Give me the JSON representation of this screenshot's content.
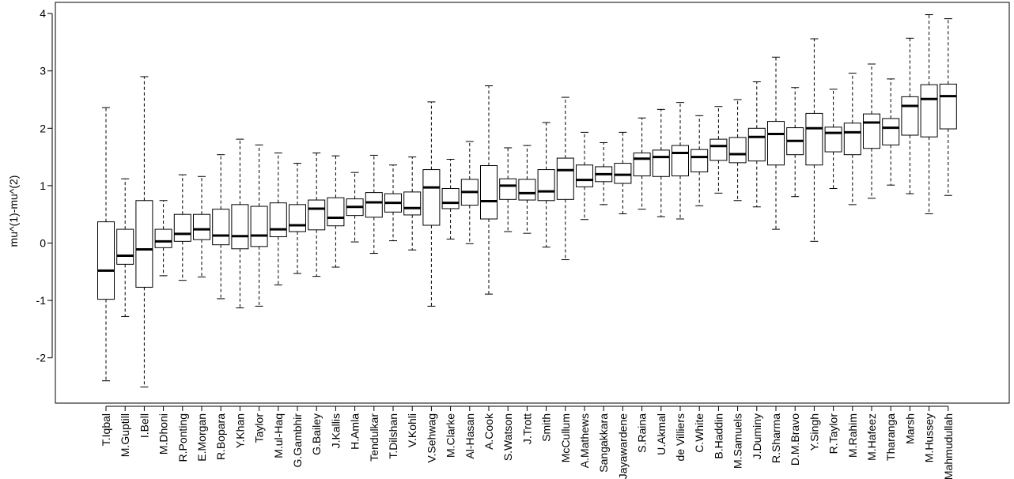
{
  "chart_data": {
    "type": "boxplot",
    "title": "",
    "xlabel": "",
    "ylabel": "mu^(1)-mu^(2)",
    "ylim": [
      -2.8,
      4.2
    ],
    "y_ticks": [
      -2,
      -1,
      0,
      1,
      2,
      3,
      4
    ],
    "grid": false,
    "legend": "none",
    "colors": {
      "box_fill": "#ffffff",
      "stroke": "#000000",
      "whisker": "#000000"
    },
    "series": [
      {
        "name": "T.Iqbal",
        "min": -2.4,
        "q1": -0.98,
        "median": -0.48,
        "q3": 0.37,
        "max": 2.36
      },
      {
        "name": "M.Guptill",
        "min": -1.28,
        "q1": -0.37,
        "median": -0.22,
        "q3": 0.24,
        "max": 1.12
      },
      {
        "name": "I.Bell",
        "min": -2.51,
        "q1": -0.77,
        "median": -0.11,
        "q3": 0.74,
        "max": 2.9
      },
      {
        "name": "M.Dhoni",
        "min": -0.57,
        "q1": -0.08,
        "median": 0.03,
        "q3": 0.24,
        "max": 0.74
      },
      {
        "name": "R.Ponting",
        "min": -0.65,
        "q1": 0.03,
        "median": 0.16,
        "q3": 0.5,
        "max": 1.19
      },
      {
        "name": "E.Morgan",
        "min": -0.59,
        "q1": 0.06,
        "median": 0.24,
        "q3": 0.5,
        "max": 1.16
      },
      {
        "name": "R.Bopara",
        "min": -0.97,
        "q1": -0.03,
        "median": 0.13,
        "q3": 0.59,
        "max": 1.54
      },
      {
        "name": "Y.Khan",
        "min": -1.13,
        "q1": -0.1,
        "median": 0.12,
        "q3": 0.67,
        "max": 1.81
      },
      {
        "name": "Taylor",
        "min": -1.1,
        "q1": -0.06,
        "median": 0.13,
        "q3": 0.64,
        "max": 1.71
      },
      {
        "name": "M.ul-Haq",
        "min": -0.73,
        "q1": 0.11,
        "median": 0.24,
        "q3": 0.7,
        "max": 1.57
      },
      {
        "name": "G.Gambhir",
        "min": -0.53,
        "q1": 0.2,
        "median": 0.31,
        "q3": 0.67,
        "max": 1.39
      },
      {
        "name": "G.Bailey",
        "min": -0.58,
        "q1": 0.23,
        "median": 0.6,
        "q3": 0.75,
        "max": 1.57
      },
      {
        "name": "J.Kallis",
        "min": -0.42,
        "q1": 0.3,
        "median": 0.44,
        "q3": 0.79,
        "max": 1.52
      },
      {
        "name": "H.Amla",
        "min": 0.02,
        "q1": 0.48,
        "median": 0.63,
        "q3": 0.77,
        "max": 1.23
      },
      {
        "name": "Tendulkar",
        "min": -0.18,
        "q1": 0.45,
        "median": 0.71,
        "q3": 0.88,
        "max": 1.53
      },
      {
        "name": "T.Dilshan",
        "min": 0.04,
        "q1": 0.54,
        "median": 0.7,
        "q3": 0.86,
        "max": 1.36
      },
      {
        "name": "V.Kohli",
        "min": -0.12,
        "q1": 0.49,
        "median": 0.61,
        "q3": 0.89,
        "max": 1.5
      },
      {
        "name": "V.Sehwag",
        "min": -1.1,
        "q1": 0.31,
        "median": 0.97,
        "q3": 1.28,
        "max": 2.46
      },
      {
        "name": "M.Clarke",
        "min": 0.07,
        "q1": 0.6,
        "median": 0.7,
        "q3": 0.95,
        "max": 1.46
      },
      {
        "name": "Al-Hasan",
        "min": -0.01,
        "q1": 0.66,
        "median": 0.89,
        "q3": 1.11,
        "max": 1.77
      },
      {
        "name": "A.Cook",
        "min": -0.89,
        "q1": 0.42,
        "median": 0.73,
        "q3": 1.35,
        "max": 2.74
      },
      {
        "name": "S.Watson",
        "min": 0.2,
        "q1": 0.76,
        "median": 1.0,
        "q3": 1.12,
        "max": 1.66
      },
      {
        "name": "J.Trott",
        "min": 0.17,
        "q1": 0.75,
        "median": 0.87,
        "q3": 1.11,
        "max": 1.7
      },
      {
        "name": "Smith",
        "min": -0.07,
        "q1": 0.74,
        "median": 0.9,
        "q3": 1.28,
        "max": 2.1
      },
      {
        "name": "McCullum",
        "min": -0.29,
        "q1": 0.76,
        "median": 1.27,
        "q3": 1.48,
        "max": 2.54
      },
      {
        "name": "A.Mathews",
        "min": 0.41,
        "q1": 0.98,
        "median": 1.1,
        "q3": 1.36,
        "max": 1.93
      },
      {
        "name": "Sangakkara",
        "min": 0.67,
        "q1": 1.07,
        "median": 1.2,
        "q3": 1.33,
        "max": 1.75
      },
      {
        "name": "Jayawardene",
        "min": 0.51,
        "q1": 1.04,
        "median": 1.19,
        "q3": 1.39,
        "max": 1.93
      },
      {
        "name": "S.Raina",
        "min": 0.59,
        "q1": 1.17,
        "median": 1.47,
        "q3": 1.57,
        "max": 2.18
      },
      {
        "name": "U.Akmal",
        "min": 0.46,
        "q1": 1.16,
        "median": 1.5,
        "q3": 1.62,
        "max": 2.33
      },
      {
        "name": "de Villiers",
        "min": 0.42,
        "q1": 1.17,
        "median": 1.57,
        "q3": 1.7,
        "max": 2.45
      },
      {
        "name": "C.White",
        "min": 0.65,
        "q1": 1.24,
        "median": 1.5,
        "q3": 1.63,
        "max": 2.22
      },
      {
        "name": "B.Haddin",
        "min": 0.87,
        "q1": 1.44,
        "median": 1.69,
        "q3": 1.81,
        "max": 2.38
      },
      {
        "name": "M.Samuels",
        "min": 0.74,
        "q1": 1.4,
        "median": 1.55,
        "q3": 1.84,
        "max": 2.5
      },
      {
        "name": "J.Duminy",
        "min": 0.63,
        "q1": 1.43,
        "median": 1.85,
        "q3": 2.0,
        "max": 2.81
      },
      {
        "name": "R.Sharma",
        "min": 0.24,
        "q1": 1.36,
        "median": 1.9,
        "q3": 2.12,
        "max": 3.24
      },
      {
        "name": "D.M.Bravo",
        "min": 0.81,
        "q1": 1.54,
        "median": 1.78,
        "q3": 2.01,
        "max": 2.71
      },
      {
        "name": "Y.Singh",
        "min": 0.03,
        "q1": 1.36,
        "median": 2.0,
        "q3": 2.26,
        "max": 3.56
      },
      {
        "name": "R.Taylor",
        "min": 0.95,
        "q1": 1.59,
        "median": 1.92,
        "q3": 2.02,
        "max": 2.68
      },
      {
        "name": "M.Rahim",
        "min": 0.67,
        "q1": 1.54,
        "median": 1.93,
        "q3": 2.09,
        "max": 2.96
      },
      {
        "name": "M.Hafeez",
        "min": 0.78,
        "q1": 1.65,
        "median": 2.1,
        "q3": 2.25,
        "max": 3.12
      },
      {
        "name": "Tharanga",
        "min": 1.01,
        "q1": 1.71,
        "median": 2.01,
        "q3": 2.17,
        "max": 2.86
      },
      {
        "name": "Marsh",
        "min": 0.86,
        "q1": 1.88,
        "median": 2.39,
        "q3": 2.55,
        "max": 3.57
      },
      {
        "name": "M.Hussey",
        "min": 0.51,
        "q1": 1.85,
        "median": 2.51,
        "q3": 2.76,
        "max": 3.98
      },
      {
        "name": "Mahmudullah",
        "min": 0.83,
        "q1": 1.99,
        "median": 2.56,
        "q3": 2.77,
        "max": 3.91
      }
    ]
  }
}
